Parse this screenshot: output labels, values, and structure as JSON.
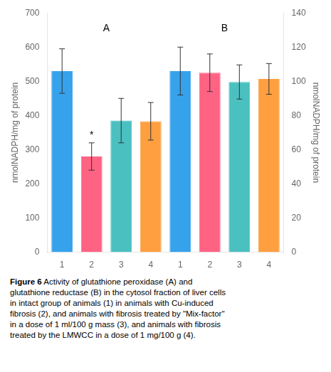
{
  "chart_data": {
    "type": "bar",
    "categories": [
      "1",
      "2",
      "3",
      "4",
      "1",
      "2",
      "3",
      "4"
    ],
    "values": [
      530,
      280,
      385,
      383,
      530,
      525,
      498,
      507
    ],
    "errors": [
      65,
      40,
      65,
      55,
      70,
      55,
      50,
      45
    ],
    "colors": [
      "#36a2eb",
      "#ff6384",
      "#4bc0c0",
      "#ff9f40",
      "#36a2eb",
      "#ff6384",
      "#4bc0c0",
      "#ff9f40"
    ],
    "ylim": [
      0,
      700
    ],
    "yticks": [
      0,
      100,
      200,
      300,
      400,
      500,
      600,
      700
    ],
    "y2lim": [
      0,
      140
    ],
    "y2ticks": [
      0,
      20,
      40,
      60,
      80,
      100,
      120,
      140
    ],
    "ylabel": "nmolNADPH/mg of protein",
    "y2label": "nmolNADPH/mg of protein",
    "annotations": [
      {
        "text": "A",
        "y": 655,
        "span": [
          0,
          3
        ]
      },
      {
        "text": "B",
        "y": 655,
        "span": [
          4,
          7
        ]
      },
      {
        "text": "*",
        "at": 1
      }
    ],
    "caption_bold": "Figure 6",
    "caption": " Activity of glutathione peroxidase (A) and\nglutathione reductase (B) in the cytosol fraction of liver cells\nin intact group of animals (1) in animals with Cu-induced\nfibrosis (2), and animals with fibrosis treated by \"Mix-factor\"\nin a dose of 1 ml/100 g mass (3), and animals with fibrosis\ntreated by the LMWCC in a dose of 1 mg/100 g (4).",
    "grid": false
  }
}
